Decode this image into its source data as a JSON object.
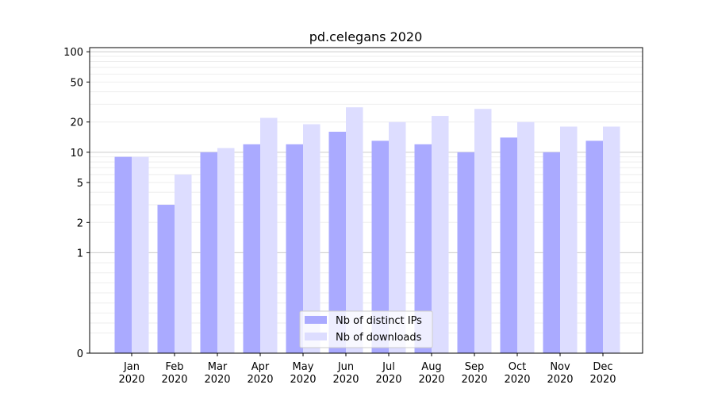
{
  "chart_data": {
    "type": "bar",
    "title": "pd.celegans 2020",
    "xlabel": "",
    "ylabel": "",
    "y_scale": "symlog",
    "ylim": [
      0,
      110
    ],
    "y_ticks": [
      0,
      1,
      2,
      5,
      10,
      20,
      50,
      100
    ],
    "categories": [
      [
        "Jan",
        "2020"
      ],
      [
        "Feb",
        "2020"
      ],
      [
        "Mar",
        "2020"
      ],
      [
        "Apr",
        "2020"
      ],
      [
        "May",
        "2020"
      ],
      [
        "Jun",
        "2020"
      ],
      [
        "Jul",
        "2020"
      ],
      [
        "Aug",
        "2020"
      ],
      [
        "Sep",
        "2020"
      ],
      [
        "Oct",
        "2020"
      ],
      [
        "Nov",
        "2020"
      ],
      [
        "Dec",
        "2020"
      ]
    ],
    "series": [
      {
        "name": "Nb of distinct IPs",
        "color": "#aaaaff",
        "values": [
          9,
          3,
          10,
          12,
          12,
          16,
          13,
          12,
          10,
          14,
          10,
          13
        ]
      },
      {
        "name": "Nb of downloads",
        "color": "#ddddff",
        "values": [
          9,
          6,
          11,
          22,
          19,
          28,
          20,
          23,
          27,
          20,
          18,
          18
        ]
      }
    ],
    "grid": "horizontal",
    "legend_position": "lower center"
  }
}
